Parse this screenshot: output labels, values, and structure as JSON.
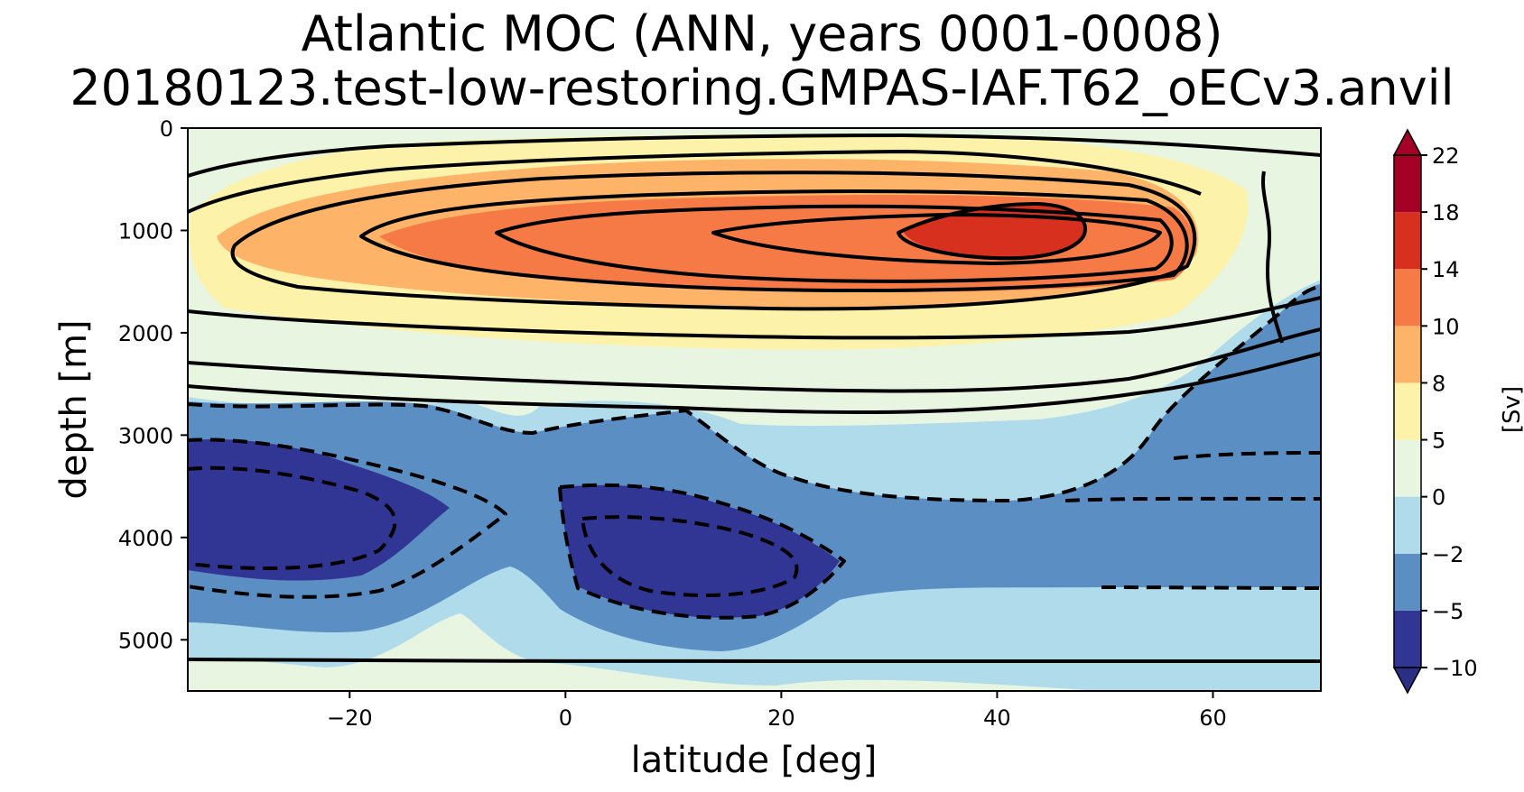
{
  "chart_data": {
    "type": "contour",
    "title": "Atlantic MOC (ANN, years 0001-0008)",
    "subtitle": "20180123.test-low-restoring.GMPAS-IAF.T62_oECv3.anvil",
    "xlabel": "latitude [deg]",
    "ylabel": "depth [m]",
    "xlim": [
      -35,
      70
    ],
    "ylim": [
      5500,
      0
    ],
    "xticks": [
      -20,
      0,
      20,
      40,
      60
    ],
    "xtick_labels": [
      "−20",
      "0",
      "20",
      "40",
      "60"
    ],
    "yticks": [
      0,
      1000,
      2000,
      3000,
      4000,
      5000
    ],
    "ytick_labels": [
      "0",
      "1000",
      "2000",
      "3000",
      "4000",
      "5000"
    ],
    "colorbar": {
      "label": "[Sv]",
      "levels": [
        -10,
        -5,
        -2,
        0,
        5,
        8,
        10,
        14,
        18,
        22
      ],
      "level_labels": [
        "−10",
        "−5",
        "−2",
        "0",
        "5",
        "8",
        "10",
        "14",
        "18",
        "22"
      ],
      "colors": [
        "#313695",
        "#5b8fc4",
        "#b0dbea",
        "#e8f5e0",
        "#fdf2aa",
        "#fdb468",
        "#f57a45",
        "#d7301f",
        "#a50026"
      ],
      "extend": "both",
      "under_color": "#2a2f85",
      "over_color": "#a50026"
    },
    "features": [
      {
        "name": "upper overturning cell",
        "sign": "positive",
        "lat_range": [
          -35,
          62
        ],
        "depth_range": [
          0,
          3000
        ],
        "max_value": 18,
        "max_lat": 42,
        "max_depth": 1000
      },
      {
        "name": "southern abyssal cell",
        "sign": "negative",
        "lat_range": [
          -35,
          0
        ],
        "depth_range": [
          2700,
          5300
        ],
        "min_value": -10,
        "min_lat": -28,
        "min_depth": 3900
      },
      {
        "name": "equatorial abyssal cell",
        "sign": "negative",
        "lat_range": [
          0,
          27
        ],
        "depth_range": [
          2800,
          5400
        ],
        "min_value": -10,
        "min_lat": 12,
        "min_depth": 4100
      }
    ]
  }
}
